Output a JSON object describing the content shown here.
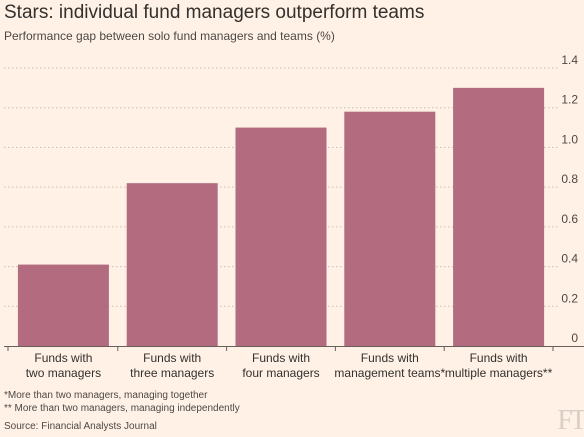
{
  "header": {
    "title": "Stars: individual fund managers outperform teams",
    "subtitle": "Performance gap between solo fund managers and teams (%)"
  },
  "chart_data": {
    "type": "bar",
    "categories": [
      [
        "Funds with",
        "two managers"
      ],
      [
        "Funds with",
        "three managers"
      ],
      [
        "Funds with",
        "four managers"
      ],
      [
        "Funds with",
        "management teams*"
      ],
      [
        "Funds with",
        "multiple managers**"
      ]
    ],
    "values": [
      0.41,
      0.82,
      1.1,
      1.18,
      1.3
    ],
    "ylim": [
      0,
      1.4
    ],
    "yticks": [
      0,
      0.2,
      0.4,
      0.6,
      0.8,
      1.0,
      1.2,
      1.4
    ],
    "ytick_labels": [
      "0",
      "0.2",
      "0.4",
      "0.6",
      "0.8",
      "1.0",
      "1.2",
      "1.4"
    ],
    "y_axis_side": "right",
    "grid": true,
    "bar_color": "#b36b7f",
    "grid_color": "#c9bfb6"
  },
  "footnotes": [
    "*More than two managers, managing together",
    "** More than two managers, managing independently"
  ],
  "source": "Source: Financial Analysts Journal",
  "logo": "FT"
}
